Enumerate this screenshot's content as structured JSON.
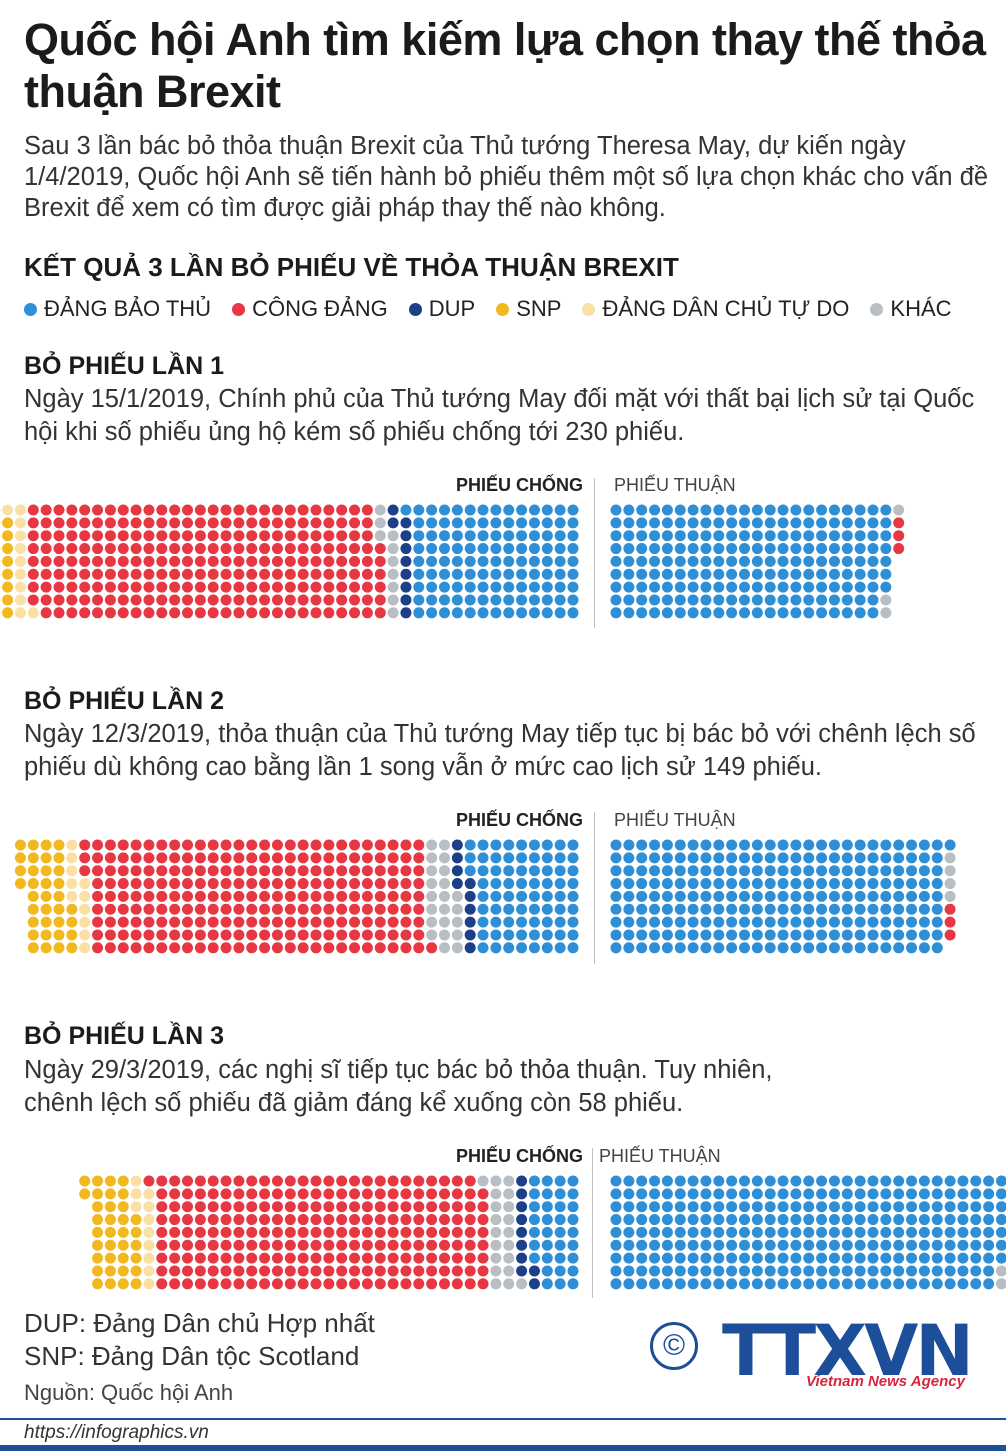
{
  "title": "Quốc hội Anh tìm kiếm lựa chọn thay thế thỏa thuận Brexit",
  "intro": "Sau 3 lần bác bỏ thỏa thuận Brexit của Thủ tướng Theresa May, dự kiến ngày 1/4/2019, Quốc hội Anh sẽ tiến hành bỏ phiếu thêm một số lựa chọn khác cho vấn đề Brexit để xem có tìm được giải pháp thay thế nào không.",
  "results_heading": "KẾT QUẢ 3 LẦN BỎ PHIẾU VỀ THỎA THUẬN BREXIT",
  "legend": [
    {
      "label": "ĐẢNG BẢO THỦ",
      "color": "#2e8fd6"
    },
    {
      "label": "CÔNG ĐẢNG",
      "color": "#e63743"
    },
    {
      "label": "DUP",
      "color": "#1c3f88"
    },
    {
      "label": "SNP",
      "color": "#f2b81f"
    },
    {
      "label": "ĐẢNG DÂN CHỦ TỰ DO",
      "color": "#fae0a4"
    },
    {
      "label": "KHÁC",
      "color": "#b9bec3"
    }
  ],
  "labels": {
    "against": "PHIẾU CHỐNG",
    "for": "PHIẾU THUẬN"
  },
  "votes": [
    {
      "heading": "BỎ PHIẾU LẦN 1",
      "desc": "Ngày 15/1/2019, Chính phủ của Thủ tướng May đối mặt với thất bại lịch sử tại Quốc hội khi số phiếu ủng hộ kém số phiếu chống tới 230 phiếu."
    },
    {
      "heading": "BỎ PHIẾU LẦN 2",
      "desc": "Ngày 12/3/2019, thỏa thuận của Thủ tướng May tiếp tục bị bác bỏ với chênh lệch số phiếu dù không cao bằng lần 1 song vẫn ở mức cao lịch sử 149 phiếu."
    },
    {
      "heading": "BỎ PHIẾU LẦN 3",
      "desc": "Ngày 29/3/2019, các nghị sĩ tiếp tục bác bỏ thỏa thuận. Tuy nhiên, chênh lệch số phiếu đã giảm đáng kể xuống còn 58 phiếu."
    }
  ],
  "notes": [
    "DUP: Đảng Dân chủ Hợp nhất",
    "SNP: Đảng Dân tộc Scotland"
  ],
  "source": "Nguồn: Quốc hội Anh",
  "copyright_symbol": "©",
  "logo": {
    "text": "TTXVN",
    "sub": "Vietnam News Agency"
  },
  "footer_url": "https://infographics.vn",
  "chart_data": [
    {
      "type": "dot-matrix",
      "vote": "BỎ PHIẾU LẦN 1",
      "series": [
        {
          "name": "ĐẢNG BẢO THỦ",
          "against": 118,
          "for": 196
        },
        {
          "name": "CÔNG ĐẢNG",
          "against": 248,
          "for": 3
        },
        {
          "name": "DUP",
          "against": 10,
          "for": 0
        },
        {
          "name": "SNP",
          "against": 35,
          "for": 0
        },
        {
          "name": "ĐẢNG DÂN CHỦ TỰ DO",
          "against": 11,
          "for": 0
        },
        {
          "name": "KHÁC",
          "against": 10,
          "for": 3
        }
      ]
    },
    {
      "type": "dot-matrix",
      "vote": "BỎ PHIẾU LẦN 2",
      "series": [
        {
          "name": "ĐẢNG BẢO THỦ",
          "against": 75,
          "for": 235
        },
        {
          "name": "CÔNG ĐẢNG",
          "against": 238,
          "for": 3
        },
        {
          "name": "DUP",
          "against": 10,
          "for": 0
        },
        {
          "name": "SNP",
          "against": 35,
          "for": 0
        },
        {
          "name": "ĐẢNG DÂN CHỦ TỰ DO",
          "against": 11,
          "for": 0
        },
        {
          "name": "KHÁC",
          "against": 22,
          "for": 4
        }
      ]
    },
    {
      "type": "dot-matrix",
      "vote": "BỎ PHIẾU LẦN 3",
      "series": [
        {
          "name": "ĐẢNG BẢO THỦ",
          "against": 34,
          "for": 277
        },
        {
          "name": "CÔNG ĐẢNG",
          "against": 234,
          "for": 5
        },
        {
          "name": "DUP",
          "against": 10,
          "for": 0
        },
        {
          "name": "SNP",
          "against": 35,
          "for": 0
        },
        {
          "name": "ĐẢNG DÂN CHỦ TỰ DO",
          "against": 11,
          "for": 0
        },
        {
          "name": "KHÁC",
          "against": 20,
          "for": 4
        }
      ]
    }
  ]
}
